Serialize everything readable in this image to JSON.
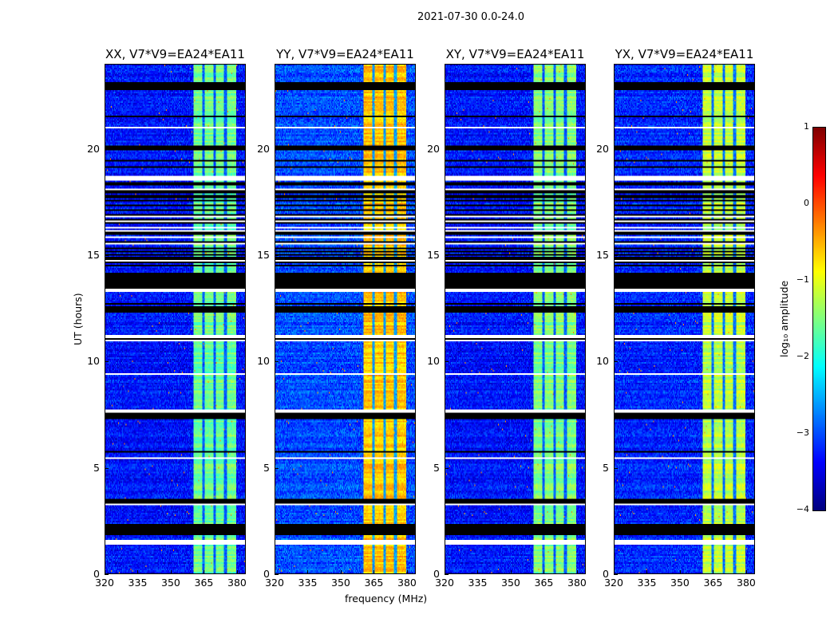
{
  "suptitle": "2021-07-30 0.0-24.0",
  "chart_data": {
    "type": "heatmap",
    "xlabel": "frequency (MHz)",
    "ylabel": "UT (hours)",
    "xlim": [
      320,
      384
    ],
    "ylim": [
      0,
      24
    ],
    "xticks": [
      320,
      335,
      350,
      365,
      380
    ],
    "yticks": [
      0,
      5,
      10,
      15,
      20
    ],
    "colorbar": {
      "label": "log₁₀ amplitude",
      "range": [
        -4,
        1
      ],
      "ticks": [
        1,
        0,
        -1,
        -2,
        -3,
        -4
      ],
      "tick_labels": [
        "1",
        "0",
        "−1",
        "−2",
        "−3",
        "−4"
      ],
      "colormap": "jet"
    },
    "bright_band_MHz": [
      360.5,
      380
    ],
    "band_gaps_MHz": [
      365,
      370,
      375
    ],
    "flagged_black_hours": [
      [
        22.8,
        23.2
      ],
      [
        19.95,
        20.2
      ],
      [
        13.4,
        14.2
      ],
      [
        12.3,
        12.5
      ],
      [
        11.0,
        11.1
      ],
      [
        7.3,
        7.6
      ],
      [
        3.3,
        3.5
      ],
      [
        1.8,
        2.3
      ]
    ],
    "flagged_white_hours": [
      [
        18.55,
        18.75
      ],
      [
        13.3,
        13.4
      ],
      [
        11.1,
        11.25
      ],
      [
        7.6,
        7.7
      ],
      [
        1.35,
        1.55
      ]
    ],
    "striped_region_hours": [
      14.4,
      18.5
    ],
    "panels": [
      {
        "title": "XX, V7*V9=EA24*EA11",
        "background_log_amp": -3.3,
        "band_log_amp": -1.6
      },
      {
        "title": "YY, V7*V9=EA24*EA11",
        "background_log_amp": -3.0,
        "band_log_amp": -0.6
      },
      {
        "title": "XY, V7*V9=EA24*EA11",
        "background_log_amp": -3.3,
        "band_log_amp": -1.5
      },
      {
        "title": "YX, V7*V9=EA24*EA11",
        "background_log_amp": -3.2,
        "band_log_amp": -1.2
      }
    ]
  }
}
